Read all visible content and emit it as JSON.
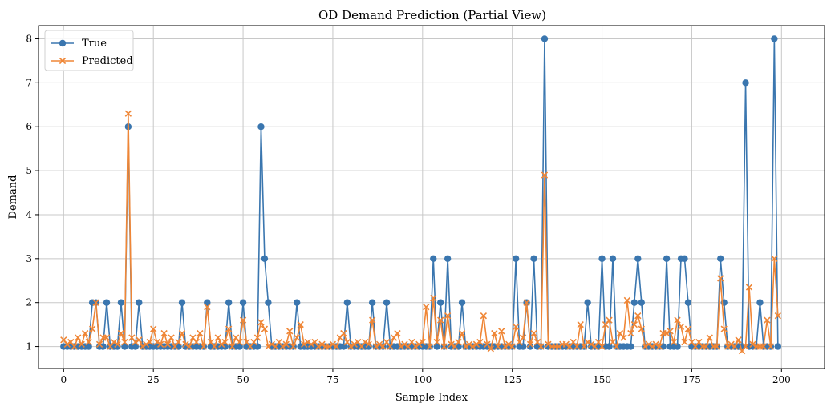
{
  "chart_data": {
    "type": "line",
    "title": "OD Demand Prediction (Partial View)",
    "xlabel": "Sample Index",
    "ylabel": "Demand",
    "xlim": [
      -7,
      212
    ],
    "ylim": [
      0.5,
      8.3
    ],
    "xticks": [
      0,
      25,
      50,
      75,
      100,
      125,
      150,
      175,
      200
    ],
    "yticks": [
      1,
      2,
      3,
      4,
      5,
      6,
      7,
      8
    ],
    "grid": true,
    "legend_position": "top-left",
    "x_start": 0,
    "series": [
      {
        "name": "True",
        "color": "#3a76af",
        "marker": "circle",
        "values": [
          1,
          1,
          1,
          1,
          1,
          1,
          1,
          1,
          2,
          2,
          1,
          1,
          2,
          1,
          1,
          1,
          2,
          1,
          6,
          1,
          1,
          2,
          1,
          1,
          1,
          1,
          1,
          1,
          1,
          1,
          1,
          1,
          1,
          2,
          1,
          1,
          1,
          1,
          1,
          1,
          2,
          1,
          1,
          1,
          1,
          1,
          2,
          1,
          1,
          1,
          2,
          1,
          1,
          1,
          1,
          6,
          3,
          2,
          1,
          1,
          1,
          1,
          1,
          1,
          1,
          2,
          1,
          1,
          1,
          1,
          1,
          1,
          1,
          1,
          1,
          1,
          1,
          1,
          1,
          2,
          1,
          1,
          1,
          1,
          1,
          1,
          2,
          1,
          1,
          1,
          2,
          1,
          1,
          1,
          1,
          1,
          1,
          1,
          1,
          1,
          1,
          1,
          1,
          3,
          1,
          2,
          1,
          3,
          1,
          1,
          1,
          2,
          1,
          1,
          1,
          1,
          1,
          1,
          1,
          1,
          1,
          1,
          1,
          1,
          1,
          1,
          3,
          1,
          1,
          2,
          1,
          3,
          1,
          1,
          8,
          1,
          1,
          1,
          1,
          1,
          1,
          1,
          1,
          1,
          1,
          1,
          2,
          1,
          1,
          1,
          3,
          1,
          1,
          3,
          1,
          1,
          1,
          1,
          1,
          2,
          3,
          2,
          1,
          1,
          1,
          1,
          1,
          1,
          3,
          1,
          1,
          1,
          3,
          3,
          2,
          1,
          1,
          1,
          1,
          1,
          1,
          1,
          1,
          3,
          2,
          1,
          1,
          1,
          1,
          1,
          7,
          1,
          1,
          1,
          2,
          1,
          1,
          1,
          8,
          1
        ]
      },
      {
        "name": "Predicted",
        "color": "#ef8636",
        "marker": "x",
        "values": [
          1.15,
          1.05,
          1.1,
          1.0,
          1.2,
          1.05,
          1.3,
          1.1,
          1.4,
          2.0,
          1.05,
          1.2,
          1.2,
          1.0,
          1.1,
          1.05,
          1.3,
          1.1,
          6.3,
          1.2,
          1.1,
          1.15,
          1.0,
          1.05,
          1.1,
          1.4,
          1.1,
          1.05,
          1.3,
          1.05,
          1.2,
          1.0,
          1.1,
          1.3,
          1.05,
          1.0,
          1.2,
          1.1,
          1.3,
          1.0,
          1.9,
          1.1,
          1.0,
          1.2,
          1.05,
          1.1,
          1.4,
          1.0,
          1.2,
          1.1,
          1.6,
          1.1,
          1.0,
          1.1,
          1.2,
          1.55,
          1.4,
          1.0,
          1.05,
          1.0,
          1.1,
          1.0,
          1.05,
          1.35,
          1.0,
          1.2,
          1.5,
          1.05,
          1.1,
          1.05,
          1.1,
          1.0,
          1.05,
          1.0,
          1.0,
          1.05,
          1.0,
          1.2,
          1.3,
          1.1,
          1.0,
          1.05,
          1.1,
          1.0,
          1.1,
          1.05,
          1.6,
          1.0,
          1.05,
          1.0,
          1.1,
          1.0,
          1.2,
          1.3,
          1.0,
          1.05,
          1.0,
          1.1,
          1.0,
          1.05,
          1.1,
          1.9,
          1.0,
          2.1,
          1.1,
          1.6,
          1.0,
          1.7,
          1.05,
          1.0,
          1.1,
          1.3,
          1.0,
          1.05,
          1.0,
          1.05,
          1.1,
          1.7,
          1.05,
          0.95,
          1.3,
          1.0,
          1.35,
          1.0,
          1.05,
          1.0,
          1.45,
          1.1,
          1.2,
          2.0,
          1.05,
          1.3,
          1.1,
          1.0,
          4.9,
          1.05,
          1.0,
          1.0,
          1.0,
          1.05,
          1.05,
          1.0,
          1.1,
          1.0,
          1.5,
          1.0,
          1.1,
          1.05,
          1.0,
          1.1,
          1.0,
          1.5,
          1.6,
          1.1,
          1.0,
          1.3,
          1.2,
          2.05,
          1.3,
          1.5,
          1.7,
          1.4,
          1.0,
          1.05,
          1.0,
          1.05,
          1.0,
          1.3,
          1.3,
          1.35,
          1.1,
          1.6,
          1.45,
          1.1,
          1.4,
          1.1,
          1.0,
          1.1,
          1.0,
          1.0,
          1.2,
          1.0,
          1.0,
          2.55,
          1.4,
          1.0,
          1.05,
          1.0,
          1.15,
          0.9,
          1.0,
          2.35,
          1.05,
          1.0,
          1.0,
          1.0,
          1.6,
          1.0,
          3.0,
          1.7
        ]
      }
    ]
  }
}
